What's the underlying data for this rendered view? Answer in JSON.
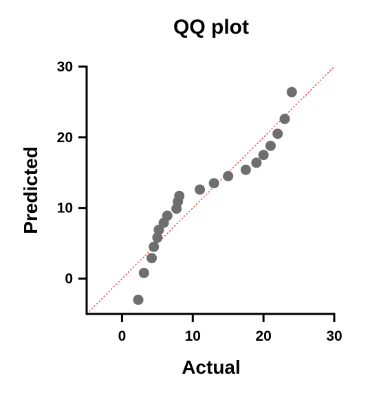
{
  "chart_data": {
    "type": "scatter",
    "title": "QQ plot",
    "xlabel": "Actual",
    "ylabel": "Predicted",
    "xlim": [
      -5,
      30
    ],
    "ylim": [
      -5,
      30
    ],
    "xticks": [
      0,
      10,
      20,
      30
    ],
    "yticks": [
      0,
      10,
      20,
      30
    ],
    "xtick_labels": [
      "0",
      "10",
      "20",
      "30"
    ],
    "ytick_labels": [
      "0",
      "10",
      "20",
      "30"
    ],
    "grid": false,
    "legend": "none",
    "reference_line": {
      "style": "dotted",
      "color": "#e0362c",
      "from": [
        -5,
        -5
      ],
      "to": [
        30,
        30
      ]
    },
    "point_color": "#6e6e6e",
    "points": [
      {
        "x": 2.3,
        "y": -3.0
      },
      {
        "x": 3.1,
        "y": 0.8
      },
      {
        "x": 4.2,
        "y": 2.9
      },
      {
        "x": 4.5,
        "y": 4.5
      },
      {
        "x": 5.0,
        "y": 5.8
      },
      {
        "x": 5.2,
        "y": 6.9
      },
      {
        "x": 5.9,
        "y": 7.9
      },
      {
        "x": 6.4,
        "y": 8.9
      },
      {
        "x": 7.7,
        "y": 9.9
      },
      {
        "x": 7.9,
        "y": 10.9
      },
      {
        "x": 8.1,
        "y": 11.7
      },
      {
        "x": 11.0,
        "y": 12.6
      },
      {
        "x": 13.0,
        "y": 13.5
      },
      {
        "x": 15.0,
        "y": 14.5
      },
      {
        "x": 17.5,
        "y": 15.4
      },
      {
        "x": 19.0,
        "y": 16.4
      },
      {
        "x": 20.0,
        "y": 17.5
      },
      {
        "x": 21.0,
        "y": 18.8
      },
      {
        "x": 22.0,
        "y": 20.5
      },
      {
        "x": 23.0,
        "y": 22.6
      },
      {
        "x": 24.0,
        "y": 26.4
      }
    ]
  }
}
